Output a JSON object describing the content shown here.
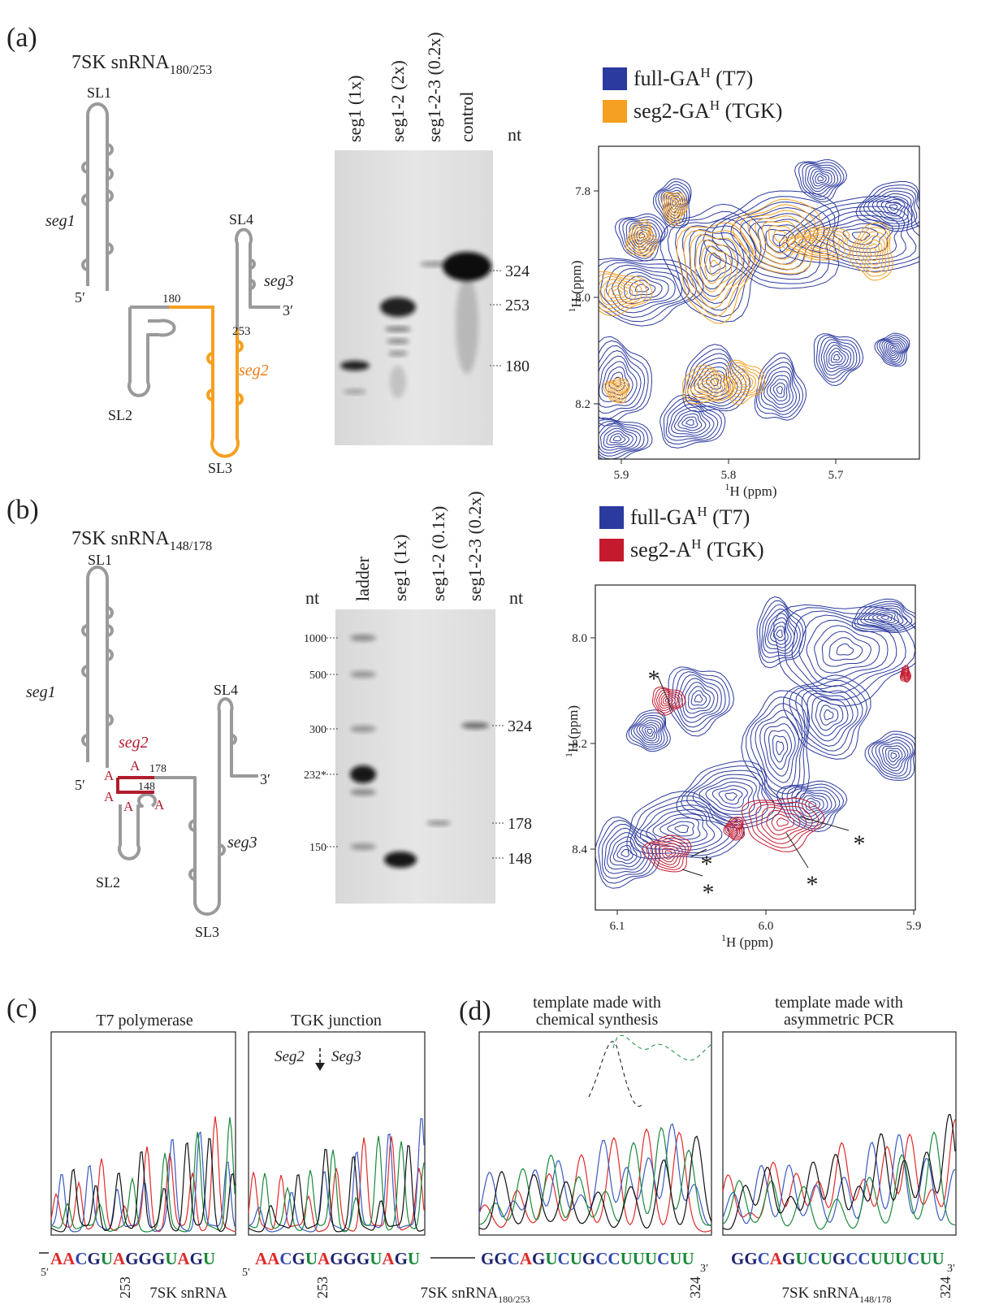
{
  "panel_a": {
    "label": "(a)",
    "title": "7SK snRNA",
    "title_sub": "180/253",
    "diagram": {
      "sl1": "SL1",
      "seg1": "seg1",
      "sl4": "SL4",
      "seg3": "seg3",
      "five_prime": "5′",
      "three_prime": "3′",
      "pos_180": "180",
      "pos_253": "253",
      "seg2": "seg2",
      "sl2": "SL2",
      "sl3": "SL3"
    },
    "gel": {
      "lanes": [
        "seg1 (1x)",
        "seg1-2 (2x)",
        "seg1-2-3 (0.2x)",
        "control"
      ],
      "unit": "nt",
      "markers": [
        "324",
        "253",
        "180"
      ]
    },
    "nmr": {
      "legend": [
        {
          "name": "full-GA",
          "sup": "H",
          "suffix": " (T7)"
        },
        {
          "name": "seg2-GA",
          "sup": "H",
          "suffix": " (TGK)"
        }
      ],
      "yticks": [
        "7.8",
        "8.0",
        "8.2"
      ],
      "xticks": [
        "5.9",
        "5.8",
        "5.7"
      ],
      "x_label_sup": "1",
      "x_label": "H (ppm)",
      "y_label_sup": "1",
      "y_label": "H (ppm)"
    }
  },
  "panel_b": {
    "label": "(b)",
    "title": "7SK snRNA",
    "title_sub": "148/178",
    "diagram": {
      "sl1": "SL1",
      "seg1": "seg1",
      "seg2": "seg2",
      "a_labels": [
        "A",
        "A",
        "A",
        "A",
        "A"
      ],
      "pos_178": "178",
      "pos_148": "148",
      "five_prime": "5′",
      "sl4": "SL4",
      "three_prime": "3′",
      "seg3": "seg3",
      "sl2": "SL2",
      "sl3": "SL3"
    },
    "gel": {
      "unit_left": "nt",
      "lanes": [
        "ladder",
        "seg1 (1x)",
        "seg1-2 (0.1x)",
        "seg1-2-3 (0.2x)"
      ],
      "unit_right": "nt",
      "ladder_markers": [
        "1000",
        "500",
        "300",
        "232*",
        "150"
      ],
      "markers": [
        "324",
        "178",
        "148"
      ]
    },
    "nmr": {
      "legend": [
        {
          "name": "full-GA",
          "sup": "H",
          "suffix": " (T7)"
        },
        {
          "name": "seg2-A",
          "sup": "H",
          "suffix": " (TGK)"
        }
      ],
      "yticks": [
        "8.0",
        "8.2",
        "8.4"
      ],
      "xticks": [
        "6.1",
        "6.0",
        "5.9"
      ],
      "x_label_sup": "1",
      "x_label": "H (ppm)",
      "y_label_sup": "1",
      "y_label": "H (ppm)",
      "asterisks": [
        "*",
        "*",
        "*",
        "*",
        "*"
      ]
    }
  },
  "panel_c": {
    "label": "(c)",
    "plots": [
      {
        "title": "T7 polymerase"
      },
      {
        "title": "TGK junction",
        "seg_left": "Seg2",
        "seg_right": "Seg3"
      }
    ],
    "sequences": [
      {
        "five_prime": "5′",
        "sequence": "AACGUAGGGUAGU",
        "position": "253",
        "caption": "7SK snRNA"
      },
      {
        "five_prime": "5′",
        "sequence": "AACGUAGGGUAGU",
        "position": "253"
      }
    ]
  },
  "panel_d": {
    "label": "(d)",
    "plots": [
      {
        "title_line1": "template made with",
        "title_line2": "chemical synthesis"
      },
      {
        "title_line1": "template made with",
        "title_line2": "asymmetric PCR"
      }
    ],
    "sequences": [
      {
        "sequence": "GGCAGUCUGCCUUUCUU",
        "three_prime": "3′",
        "position": "324",
        "caption": "7SK snRNA",
        "caption_sub": "180/253"
      },
      {
        "sequence": "GGCAGUCUGCCUUUCUU",
        "three_prime": "3′",
        "position": "324",
        "caption": "7SK snRNA",
        "caption_sub": "148/178"
      }
    ]
  }
}
